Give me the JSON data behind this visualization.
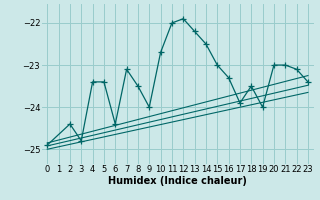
{
  "title": "",
  "xlabel": "Humidex (Indice chaleur)",
  "ylabel": "",
  "bg_color": "#cce8e8",
  "grid_color": "#99cccc",
  "line_color": "#006666",
  "xlim": [
    -0.5,
    23.5
  ],
  "ylim": [
    -25.35,
    -21.55
  ],
  "yticks": [
    -25,
    -24,
    -23,
    -22
  ],
  "xticks": [
    0,
    1,
    2,
    3,
    4,
    5,
    6,
    7,
    8,
    9,
    10,
    11,
    12,
    13,
    14,
    15,
    16,
    17,
    18,
    19,
    20,
    21,
    22,
    23
  ],
  "series": [
    [
      0,
      -24.9
    ],
    [
      2,
      -24.4
    ],
    [
      3,
      -24.8
    ],
    [
      4,
      -23.4
    ],
    [
      5,
      -23.4
    ],
    [
      6,
      -24.4
    ],
    [
      7,
      -23.1
    ],
    [
      8,
      -23.5
    ],
    [
      9,
      -24.0
    ],
    [
      10,
      -22.7
    ],
    [
      11,
      -22.0
    ],
    [
      12,
      -21.9
    ],
    [
      13,
      -22.2
    ],
    [
      14,
      -22.5
    ],
    [
      15,
      -23.0
    ],
    [
      16,
      -23.3
    ],
    [
      17,
      -23.9
    ],
    [
      18,
      -23.5
    ],
    [
      19,
      -24.0
    ],
    [
      20,
      -23.0
    ],
    [
      21,
      -23.0
    ],
    [
      22,
      -23.1
    ],
    [
      23,
      -23.4
    ]
  ],
  "linear1": [
    [
      0,
      -24.85
    ],
    [
      23,
      -23.25
    ]
  ],
  "linear2": [
    [
      0,
      -24.92
    ],
    [
      23,
      -23.48
    ]
  ],
  "linear3": [
    [
      0,
      -25.0
    ],
    [
      23,
      -23.65
    ]
  ]
}
